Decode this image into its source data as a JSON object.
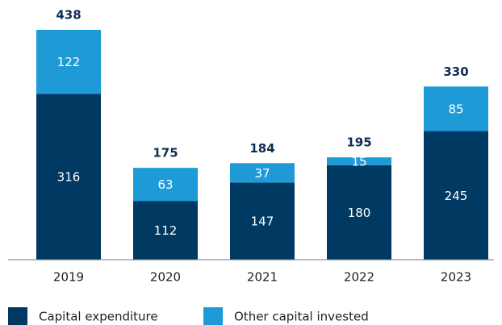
{
  "chart_data": {
    "type": "stacked-bar",
    "categories": [
      "2019",
      "2020",
      "2021",
      "2022",
      "2023"
    ],
    "series": [
      {
        "name": "Capital expenditure",
        "color": "#003a63",
        "values": [
          316,
          112,
          147,
          180,
          245
        ]
      },
      {
        "name": "Other capital invested",
        "color": "#1e9bd7",
        "values": [
          122,
          63,
          37,
          15,
          85
        ]
      }
    ],
    "totals": [
      438,
      175,
      184,
      195,
      330
    ],
    "legend": "bottom-left"
  }
}
